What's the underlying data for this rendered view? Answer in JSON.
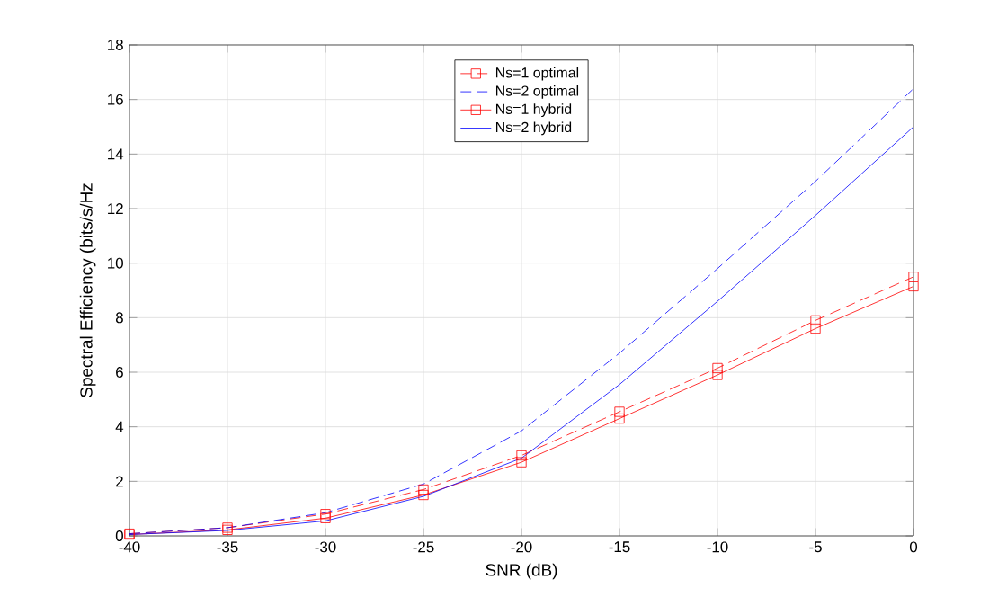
{
  "chart_data": {
    "type": "line",
    "xlabel": "SNR (dB)",
    "ylabel": "Spectral Efficiency (bits/s/Hz",
    "x": [
      -40,
      -35,
      -30,
      -25,
      -20,
      -15,
      -10,
      -5,
      0
    ],
    "series": [
      {
        "name": "Ns=1 optimal",
        "color": "#ff0000",
        "marker": "square",
        "line_style": "dashed",
        "values": [
          0.08,
          0.3,
          0.8,
          1.7,
          2.95,
          4.55,
          6.15,
          7.9,
          9.5
        ]
      },
      {
        "name": "Ns=2 optimal",
        "color": "#0000ff",
        "marker": "none",
        "line_style": "dashed",
        "values": [
          0.08,
          0.3,
          0.85,
          1.9,
          3.85,
          6.7,
          9.8,
          13.0,
          16.4
        ]
      },
      {
        "name": "Ns=1 hybrid",
        "color": "#ff0000",
        "marker": "square",
        "line_style": "solid",
        "values": [
          0.05,
          0.22,
          0.65,
          1.5,
          2.7,
          4.3,
          5.9,
          7.6,
          9.15
        ]
      },
      {
        "name": "Ns=2 hybrid",
        "color": "#0000ff",
        "marker": "none",
        "line_style": "solid",
        "values": [
          0.05,
          0.2,
          0.55,
          1.45,
          2.85,
          5.55,
          8.6,
          11.75,
          15.0
        ]
      }
    ],
    "xlim": [
      -40,
      0
    ],
    "ylim": [
      0,
      18
    ],
    "xticks": [
      -40,
      -35,
      -30,
      -25,
      -20,
      -15,
      -10,
      -5,
      0
    ],
    "yticks": [
      0,
      2,
      4,
      6,
      8,
      10,
      12,
      14,
      16,
      18
    ],
    "grid": true,
    "legend": "top"
  }
}
